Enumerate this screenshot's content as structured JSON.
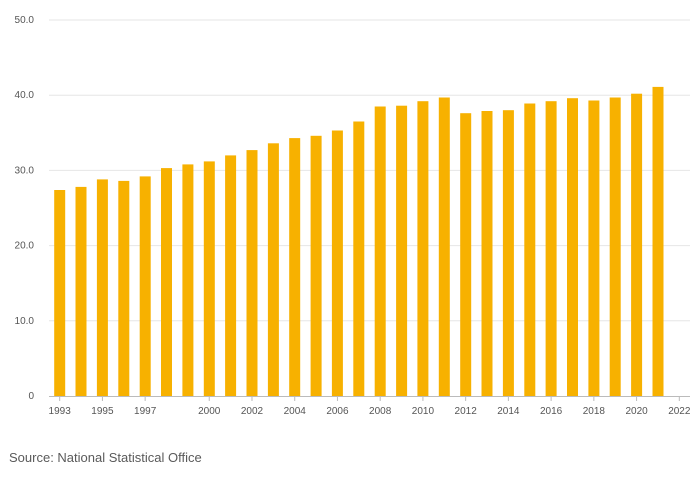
{
  "chart_data": {
    "type": "bar",
    "title": "",
    "xlabel": "",
    "ylabel": "",
    "ylim": [
      0,
      50
    ],
    "yticks": [
      0,
      10,
      20,
      30,
      40,
      50
    ],
    "ytick_labels": [
      "0",
      "10.0",
      "20.0",
      "30.0",
      "40.0",
      "50.0"
    ],
    "categories": [
      "1993",
      "1994",
      "1995",
      "1996",
      "1997",
      "1998",
      "1999",
      "2000",
      "2001",
      "2002",
      "2003",
      "2004",
      "2005",
      "2006",
      "2007",
      "2008",
      "2009",
      "2010",
      "2011",
      "2012",
      "2013",
      "2014",
      "2015",
      "2016",
      "2017",
      "2018",
      "2019",
      "2020",
      "2021",
      "2022"
    ],
    "xtick_labels_shown": [
      "1993",
      "1995",
      "1997",
      "2000",
      "2002",
      "2004",
      "2006",
      "2008",
      "2010",
      "2012",
      "2014",
      "2016",
      "2018",
      "2020",
      "2022"
    ],
    "values": [
      27.4,
      27.8,
      28.8,
      28.6,
      29.2,
      30.3,
      30.8,
      31.2,
      32.0,
      32.7,
      33.6,
      34.3,
      34.6,
      35.3,
      36.5,
      38.5,
      38.6,
      39.2,
      39.7,
      37.6,
      37.9,
      38.0,
      38.9,
      39.2,
      39.6,
      39.3,
      39.7,
      40.2,
      41.1,
      0
    ],
    "grid": true,
    "bar_color": "#f7b100",
    "grid_color": "#e6e6e6",
    "axis_color": "#bbbbbb"
  },
  "source": {
    "text": "Source: National Statistical Office"
  }
}
